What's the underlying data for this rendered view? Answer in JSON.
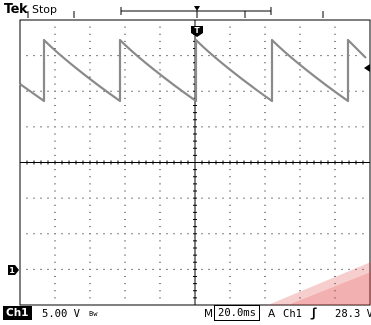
{
  "header": {
    "brand": "Tek",
    "acquisition_state": "Stop",
    "trigger_marker": "T"
  },
  "channel_marker": "1",
  "footer": {
    "channel_label": "Ch1",
    "channel_scale": "5.00 V",
    "bandwidth_icon": "bandwidth-limit-icon",
    "bandwidth_glyph": "Bw",
    "timebase_prefix": "M",
    "timebase": "20.0ms",
    "trigger_source_prefix": "A",
    "trigger_source": "Ch1",
    "trigger_slope_icon": "rising-edge-icon",
    "trigger_slope_glyph": "ʃ",
    "trigger_level": "28.3 V"
  },
  "colors": {
    "trace": "#8a8a8a",
    "grid": "#000000",
    "watermark": "#e03a3a",
    "background": "#ffffff"
  }
}
